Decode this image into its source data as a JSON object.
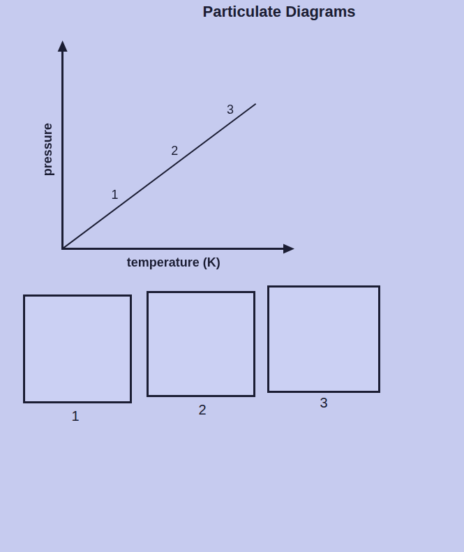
{
  "chart_data": {
    "type": "line",
    "title": "Particulate Diagrams",
    "x_label": "temperature (K)",
    "y_label": "pressure",
    "x": [
      0,
      87
    ],
    "values": [
      0,
      73
    ],
    "xlim": [
      0,
      100
    ],
    "ylim": [
      0,
      100
    ],
    "tick_labels": false,
    "grid": false,
    "color": "#1b1d33",
    "annotations": [
      {
        "text": "1",
        "x": 26,
        "y": 22
      },
      {
        "text": "2",
        "x": 53,
        "y": 44
      },
      {
        "text": "3",
        "x": 78,
        "y": 65
      }
    ]
  },
  "boxes": [
    {
      "label": "1"
    },
    {
      "label": "2"
    },
    {
      "label": "3"
    }
  ]
}
